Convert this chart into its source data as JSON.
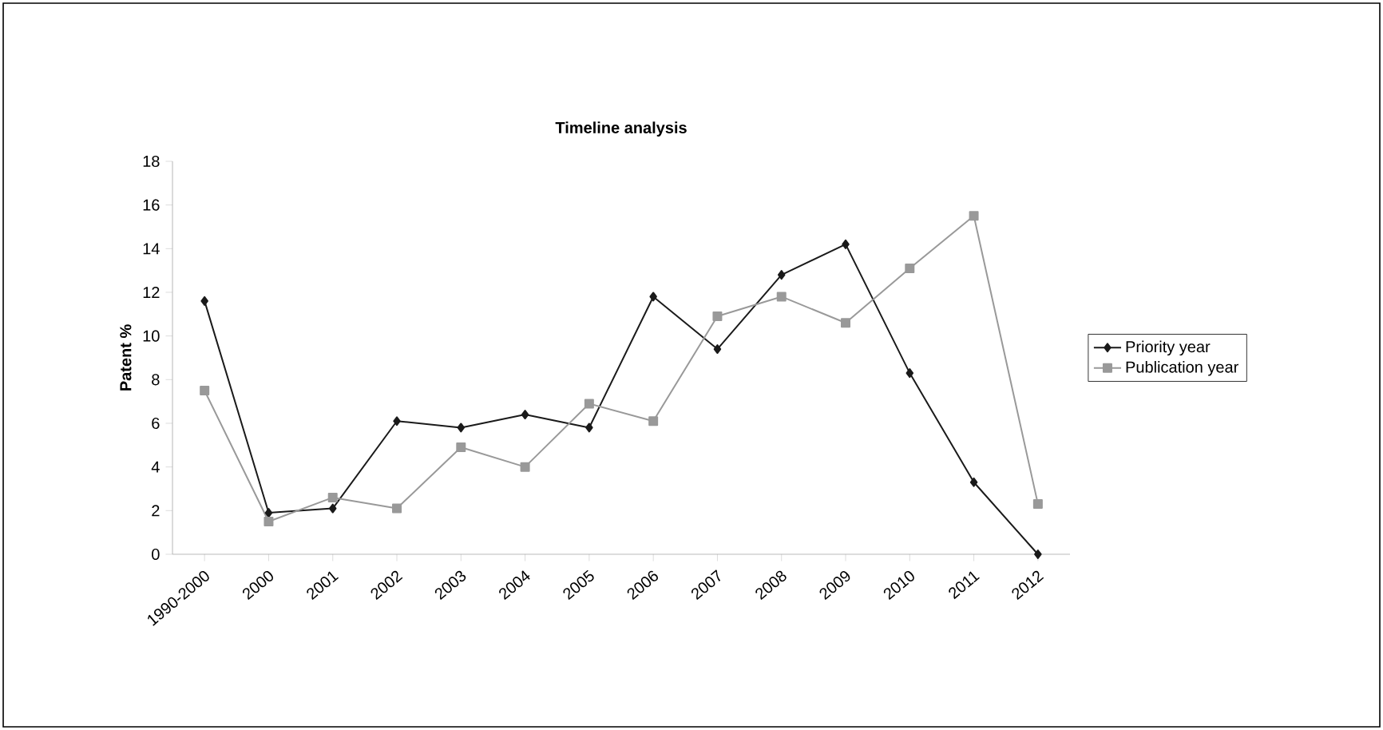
{
  "chart_data": {
    "type": "line",
    "title": "Timeline analysis",
    "ylabel": "Patent %",
    "categories": [
      "1990-2000",
      "2000",
      "2001",
      "2002",
      "2003",
      "2004",
      "2005",
      "2006",
      "2007",
      "2008",
      "2009",
      "2010",
      "2011",
      "2012"
    ],
    "series": [
      {
        "name": "Priority year",
        "color": "#1a1a1a",
        "marker": "diamond",
        "values": [
          11.6,
          1.9,
          2.1,
          6.1,
          5.8,
          6.4,
          5.8,
          11.8,
          9.4,
          12.8,
          14.2,
          8.3,
          3.3,
          0
        ]
      },
      {
        "name": "Publication year",
        "color": "#999999",
        "marker": "square",
        "values": [
          7.5,
          1.5,
          2.6,
          2.1,
          4.9,
          4.0,
          6.9,
          6.1,
          10.9,
          11.8,
          10.6,
          13.1,
          15.5,
          2.3
        ]
      }
    ],
    "ylim": [
      0,
      18
    ],
    "yticks": [
      0,
      2,
      4,
      6,
      8,
      10,
      12,
      14,
      16,
      18
    ],
    "grid": false,
    "legend": "right",
    "line_style": "solid"
  }
}
